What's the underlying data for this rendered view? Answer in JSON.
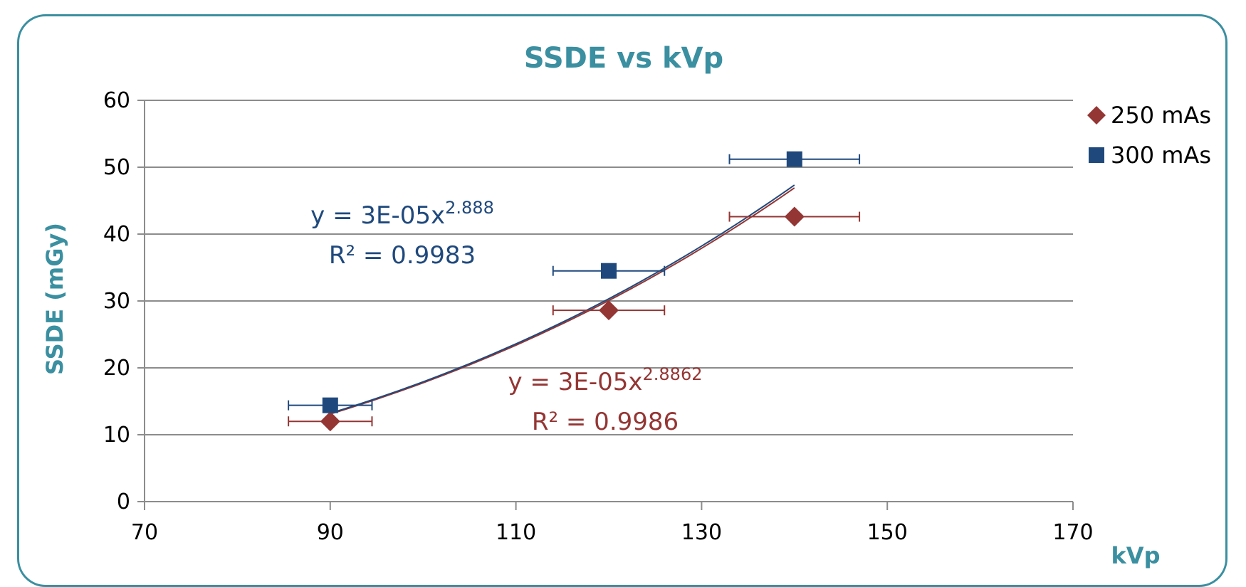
{
  "chart_data": {
    "type": "scatter",
    "title": "SSDE vs kVp",
    "xlabel": "kVp",
    "ylabel": "SSDE (mGy)",
    "xlim": [
      70,
      170
    ],
    "ylim": [
      0,
      60
    ],
    "x_ticks": [
      "70",
      "90",
      "110",
      "130",
      "150",
      "170"
    ],
    "y_ticks": [
      "0",
      "10",
      "20",
      "30",
      "40",
      "50",
      "60"
    ],
    "grid": "horizontal",
    "legend_position": "right",
    "series": [
      {
        "name": "250 mAs",
        "marker": "diamond",
        "color": "#943634",
        "points": [
          {
            "x": 90,
            "y": 12.0
          },
          {
            "x": 120,
            "y": 28.6
          },
          {
            "x": 140,
            "y": 42.6
          }
        ],
        "x_error": [
          4.5,
          6.0,
          7.0
        ],
        "trendline": {
          "type": "power",
          "a": 3e-05,
          "b": 2.8862,
          "eq_base": "y = 3E-05x",
          "eq_exp": "2.8862",
          "r2_text": "R² = 0.9986"
        }
      },
      {
        "name": "300 mAs",
        "marker": "square",
        "color": "#1f497d",
        "points": [
          {
            "x": 90,
            "y": 14.4
          },
          {
            "x": 120,
            "y": 34.5
          },
          {
            "x": 140,
            "y": 51.2
          }
        ],
        "x_error": [
          4.5,
          6.0,
          7.0
        ],
        "trendline": {
          "type": "power",
          "a": 3e-05,
          "b": 2.888,
          "eq_base": "y = 3E-05x",
          "eq_exp": "2.888",
          "r2_text": "R² = 0.9983"
        }
      }
    ]
  }
}
